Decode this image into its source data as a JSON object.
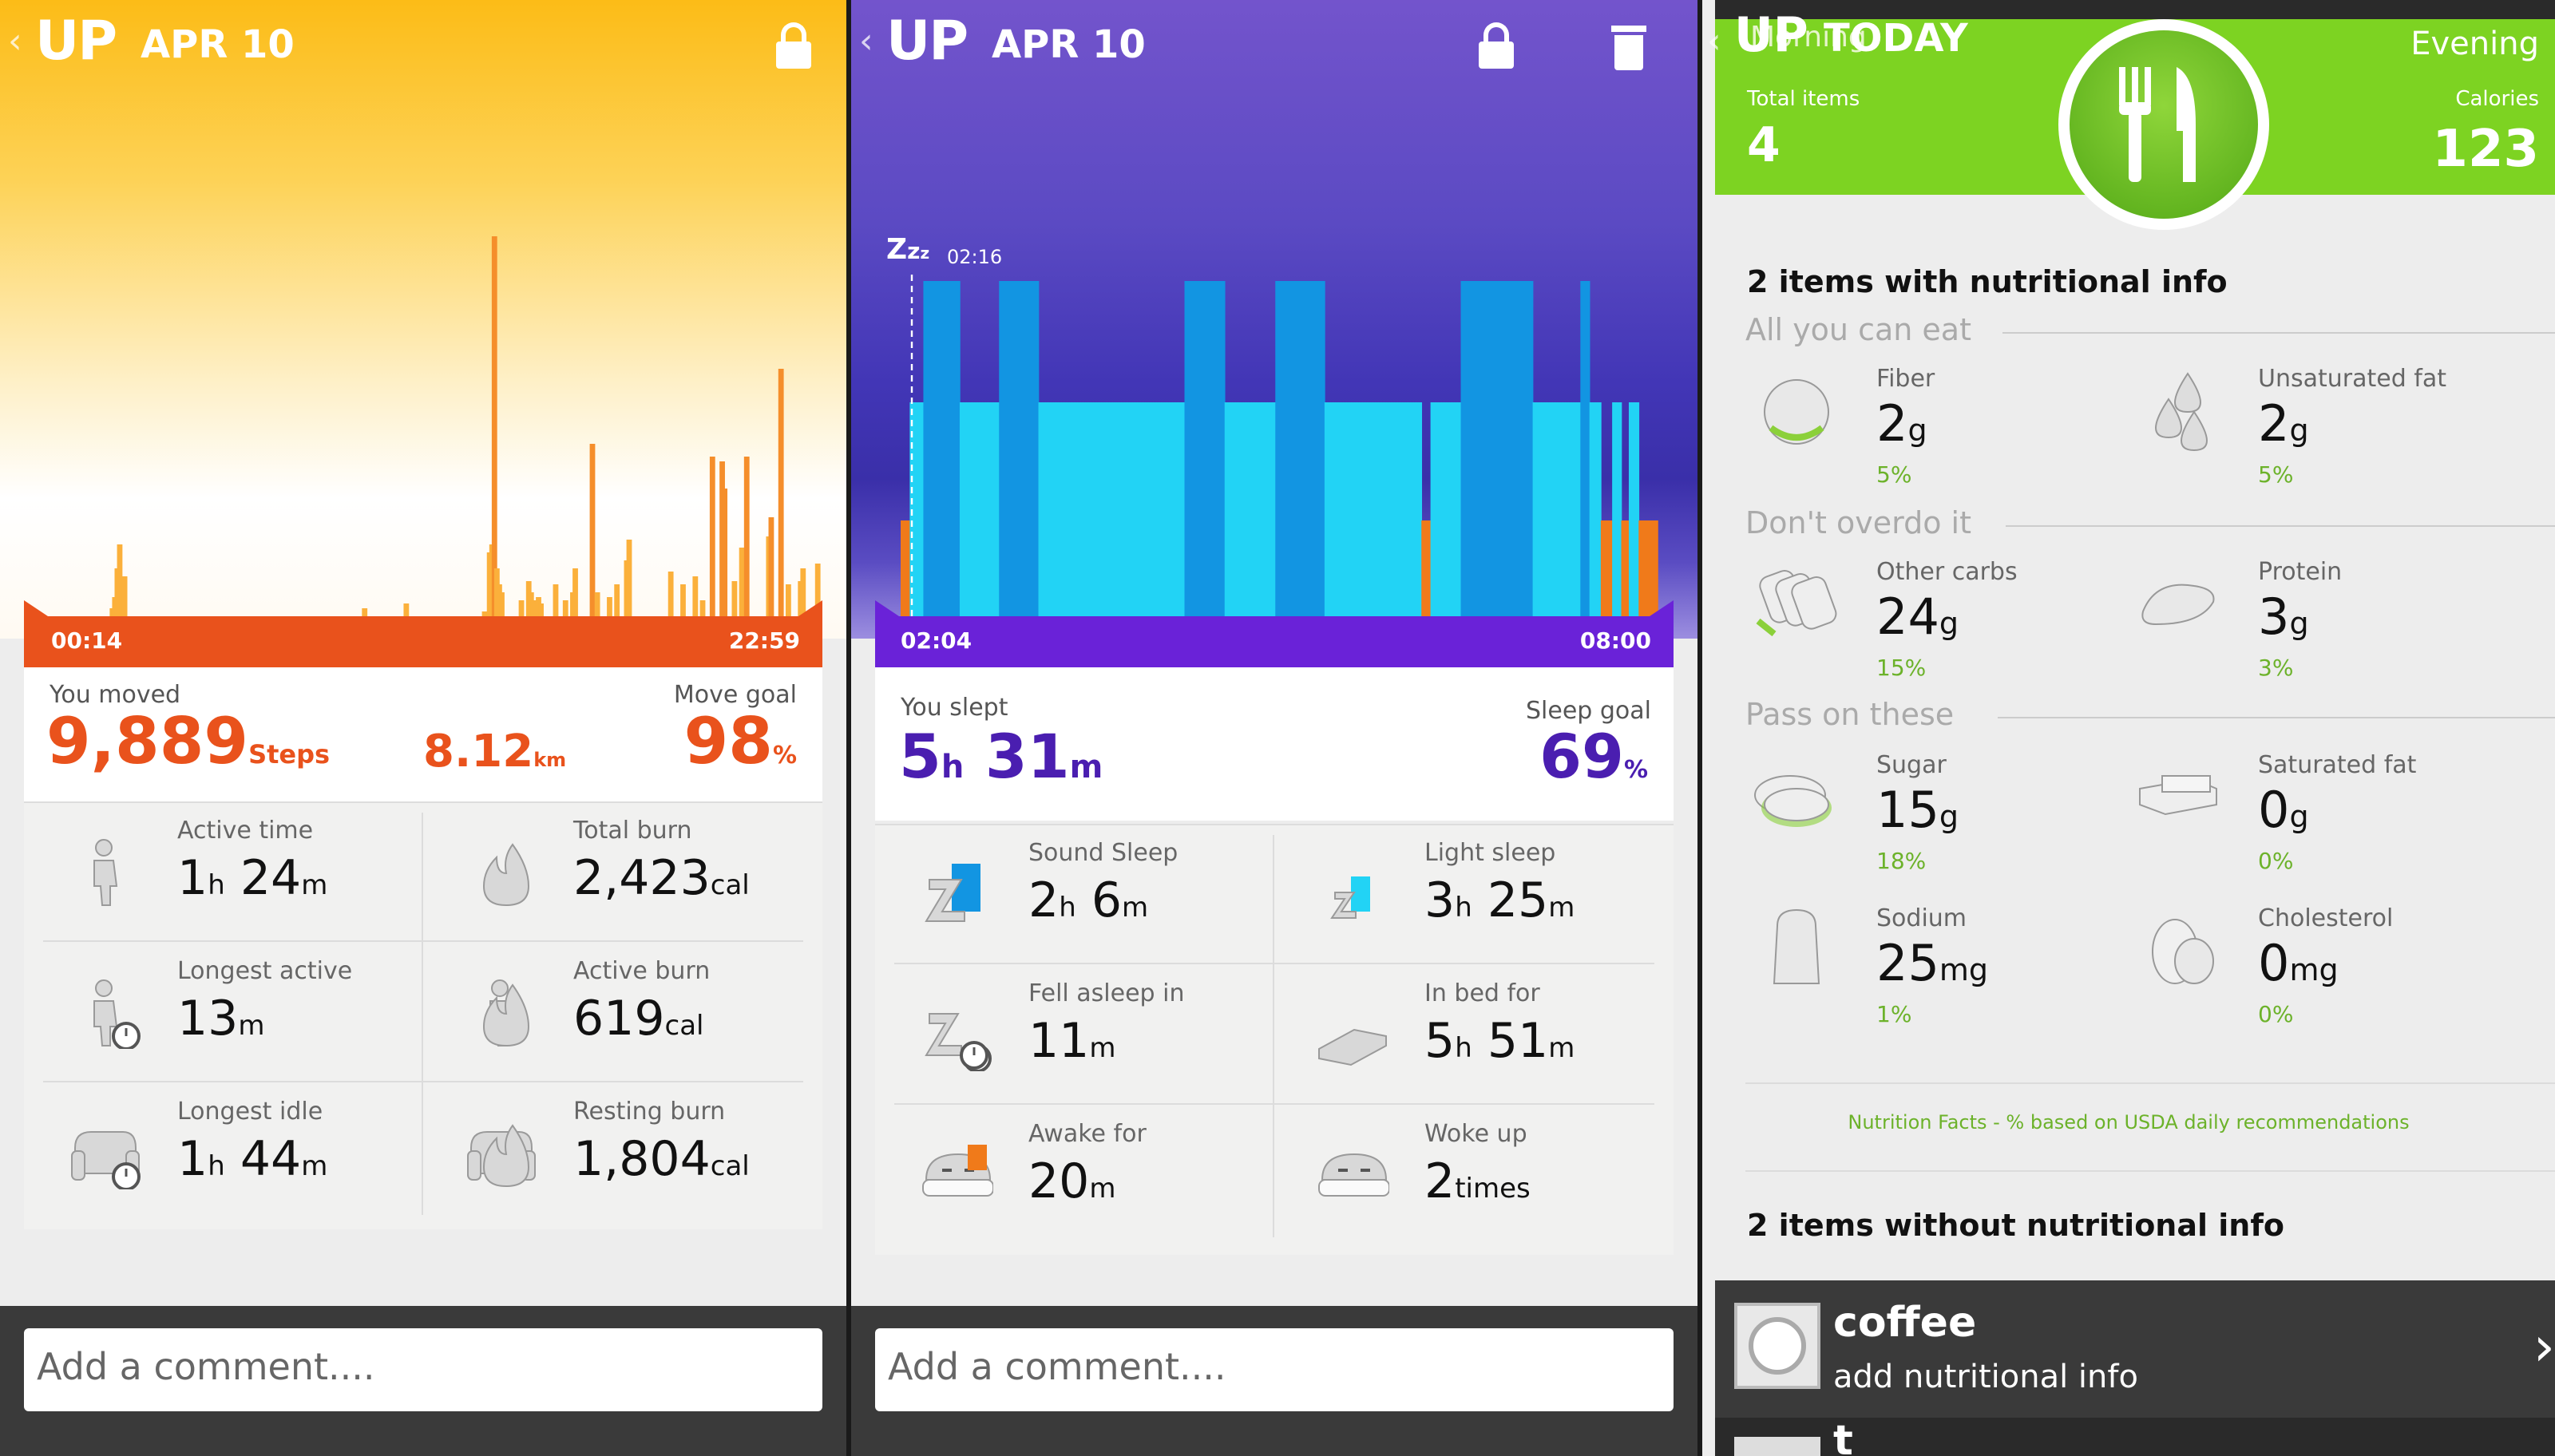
{
  "activity": {
    "back": "‹",
    "app": "UP",
    "date": "APR 10",
    "lock_icon": "lock-icon",
    "chart_data": {
      "type": "bar",
      "title": "",
      "xlabel": "",
      "ylabel": "",
      "x_start": "00:14",
      "x_end": "22:59",
      "values": [
        0,
        0,
        0,
        0,
        0,
        0,
        0,
        0,
        0,
        0,
        0,
        0,
        0,
        0,
        0,
        0,
        0,
        0,
        0,
        0,
        0,
        0,
        0,
        0,
        0,
        0,
        0,
        0,
        0,
        0,
        0,
        0,
        0,
        0,
        0,
        5,
        12,
        30,
        45,
        20,
        25,
        0,
        0,
        0,
        0,
        0,
        0,
        0,
        0,
        0,
        0,
        0,
        0,
        0,
        0,
        0,
        0,
        0,
        0,
        0,
        0,
        0,
        0,
        0,
        0,
        0,
        0,
        0,
        0,
        0,
        0,
        0,
        0,
        0,
        0,
        0,
        0,
        0,
        0,
        0,
        0,
        0,
        0,
        0,
        0,
        0,
        0,
        0,
        0,
        0,
        0,
        0,
        0,
        0,
        0,
        0,
        0,
        0,
        0,
        0,
        0,
        0,
        0,
        0,
        0,
        0,
        0,
        0,
        0,
        0,
        0,
        0,
        0,
        0,
        0,
        0,
        0,
        0,
        0,
        0,
        0,
        0,
        0,
        0,
        0,
        0,
        0,
        0,
        0,
        0,
        0,
        0,
        0,
        0,
        0,
        0,
        0,
        0,
        5,
        0,
        0,
        0,
        0,
        0,
        0,
        0,
        0,
        0,
        0,
        0,
        0,
        0,
        0,
        0,
        0,
        8,
        0,
        0,
        0,
        0,
        0,
        0,
        0,
        0,
        0,
        0,
        0,
        0,
        0,
        0,
        0,
        0,
        0,
        0,
        0,
        0,
        0,
        0,
        0,
        0,
        0,
        0,
        0,
        0,
        0,
        0,
        0,
        3,
        0,
        40,
        45,
        238,
        30,
        20,
        15,
        0,
        0,
        0,
        0,
        0,
        0,
        0,
        10,
        0,
        0,
        22,
        15,
        10,
        0,
        12,
        8,
        0,
        0,
        0,
        0,
        0,
        20,
        0,
        0,
        0,
        10,
        0,
        0,
        15,
        30,
        0,
        0,
        0,
        0,
        0,
        0,
        108,
        0,
        15,
        0,
        0,
        0,
        0,
        12,
        0,
        0,
        20,
        0,
        0,
        0,
        35,
        48,
        0,
        0,
        0,
        0,
        0,
        0,
        0,
        0,
        0,
        0,
        0,
        0,
        0,
        0,
        0,
        0,
        28,
        0,
        0,
        0,
        0,
        20,
        0,
        0,
        0,
        0,
        25,
        0,
        0,
        10,
        0,
        0,
        0,
        100,
        0,
        0,
        0,
        97,
        80,
        0,
        0,
        0,
        22,
        0,
        0,
        43,
        0,
        100,
        0,
        0,
        0,
        0,
        0,
        0,
        0,
        0,
        50,
        62,
        0,
        0,
        0,
        155,
        0,
        0,
        20,
        0,
        0,
        0,
        0,
        22,
        30,
        0,
        0,
        0,
        0,
        0,
        33,
        0,
        0
      ],
      "peak_index": 203
    },
    "moved_label": "You moved",
    "goal_label": "Move goal",
    "steps": "9,889",
    "steps_unit": "Steps",
    "distance": "8.12",
    "distance_unit": "km",
    "goal_pct": "98",
    "pct_unit": "%",
    "cells": [
      {
        "label": "Active time",
        "v1": "1",
        "u1": "h",
        "v2": " 24",
        "u2": "m",
        "icon": "walking-figure-icon"
      },
      {
        "label": "Total burn",
        "v1": "2,423",
        "u1": "cal",
        "v2": "",
        "u2": "",
        "icon": "flame-icon"
      },
      {
        "label": "Longest active",
        "v1": "13",
        "u1": "m",
        "v2": "",
        "u2": "",
        "icon": "figure-stopwatch-icon"
      },
      {
        "label": "Active burn",
        "v1": "619",
        "u1": "cal",
        "v2": "",
        "u2": "",
        "icon": "figure-flame-icon"
      },
      {
        "label": "Longest idle",
        "v1": "1",
        "u1": "h",
        "v2": " 44",
        "u2": "m",
        "icon": "armchair-stopwatch-icon"
      },
      {
        "label": "Resting burn",
        "v1": "1,804",
        "u1": "cal",
        "v2": "",
        "u2": "",
        "icon": "armchair-flame-icon"
      }
    ],
    "comment_placeholder": "Add a comment...."
  },
  "sleep": {
    "back": "‹",
    "app": "UP",
    "date": "APR 10",
    "lock_icon": "lock-icon",
    "trash_icon": "trash-icon",
    "zzz": "Z",
    "zz_sub": "z",
    "zzz_sub": "z",
    "fell_asleep_time": "02:16",
    "x_start": "02:04",
    "x_end": "08:00",
    "slept_label": "You slept",
    "goal_label": "Sleep goal",
    "slept_h": "5",
    "slept_h_unit": "h",
    "slept_m": " 31",
    "slept_m_unit": "m",
    "goal_pct": "69",
    "pct_unit": "%",
    "colors": {
      "deep": "#1295e2",
      "light": "#22d3f5",
      "awake": "#f07a1a"
    },
    "chart_data": {
      "type": "bar",
      "title": "",
      "xlabel": "",
      "ylabel": "",
      "x_start": "02:04",
      "x_end": "08:00",
      "levels": [
        "awake",
        "light",
        "deep"
      ],
      "segments": [
        {
          "from": 0.0,
          "to": 0.012,
          "level": "awake"
        },
        {
          "from": 0.012,
          "to": 0.03,
          "level": "light"
        },
        {
          "from": 0.03,
          "to": 0.078,
          "level": "deep"
        },
        {
          "from": 0.078,
          "to": 0.13,
          "level": "light"
        },
        {
          "from": 0.13,
          "to": 0.182,
          "level": "deep"
        },
        {
          "from": 0.182,
          "to": 0.375,
          "level": "light"
        },
        {
          "from": 0.375,
          "to": 0.428,
          "level": "deep"
        },
        {
          "from": 0.428,
          "to": 0.495,
          "level": "light"
        },
        {
          "from": 0.495,
          "to": 0.56,
          "level": "deep"
        },
        {
          "from": 0.56,
          "to": 0.688,
          "level": "light"
        },
        {
          "from": 0.688,
          "to": 0.7,
          "level": "awake"
        },
        {
          "from": 0.7,
          "to": 0.74,
          "level": "light"
        },
        {
          "from": 0.74,
          "to": 0.835,
          "level": "deep"
        },
        {
          "from": 0.835,
          "to": 0.898,
          "level": "light"
        },
        {
          "from": 0.898,
          "to": 0.91,
          "level": "deep"
        },
        {
          "from": 0.91,
          "to": 0.925,
          "level": "light"
        },
        {
          "from": 0.925,
          "to": 0.94,
          "level": "awake"
        },
        {
          "from": 0.94,
          "to": 0.952,
          "level": "light"
        },
        {
          "from": 0.952,
          "to": 0.962,
          "level": "awake"
        },
        {
          "from": 0.962,
          "to": 0.975,
          "level": "light"
        },
        {
          "from": 0.975,
          "to": 1.0,
          "level": "awake"
        }
      ]
    },
    "cells": [
      {
        "label": "Sound Sleep",
        "v1": "2",
        "u1": "h",
        "v2": " 6",
        "u2": "m",
        "icon": "sound-sleep-icon"
      },
      {
        "label": "Light sleep",
        "v1": "3",
        "u1": "h",
        "v2": " 25",
        "u2": "m",
        "icon": "light-sleep-icon"
      },
      {
        "label": "Fell asleep in",
        "v1": "11",
        "u1": "m",
        "v2": "",
        "u2": "",
        "icon": "zz-stopwatch-icon"
      },
      {
        "label": "In bed for",
        "v1": "5",
        "u1": "h",
        "v2": " 51",
        "u2": "m",
        "icon": "bed-icon"
      },
      {
        "label": "Awake for",
        "v1": "20",
        "u1": "m",
        "v2": "",
        "u2": "",
        "icon": "awake-face-icon"
      },
      {
        "label": "Woke up",
        "v1": "2",
        "u1": "times",
        "v2": "",
        "u2": "",
        "icon": "woke-face-icon"
      }
    ],
    "comment_placeholder": "Add a comment...."
  },
  "food": {
    "back": "‹",
    "app": "UP",
    "title": "TODAY",
    "morning": "Morning",
    "evening": "Evening",
    "total_label": "Total items",
    "total": "4",
    "cal_label": "Calories",
    "calories": "123",
    "meal_icon": "fork-knife-icon",
    "with_info": "2 items with nutritional info",
    "sections": [
      "All you can eat",
      "Don't overdo it",
      "Pass on these"
    ],
    "nutrients": [
      {
        "label": "Fiber",
        "v": "2",
        "u": "g",
        "pct": "5%",
        "icon": "apple-icon"
      },
      {
        "label": "Unsaturated fat",
        "v": "2",
        "u": "g",
        "pct": "5%",
        "icon": "oil-drops-icon"
      },
      {
        "label": "Other carbs",
        "v": "24",
        "u": "g",
        "pct": "15%",
        "icon": "bread-slices-icon"
      },
      {
        "label": "Protein",
        "v": "3",
        "u": "g",
        "pct": "3%",
        "icon": "steak-icon"
      },
      {
        "label": "Sugar",
        "v": "15",
        "u": "g",
        "pct": "18%",
        "icon": "sugar-icon"
      },
      {
        "label": "Saturated fat",
        "v": "0",
        "u": "g",
        "pct": "0%",
        "icon": "butter-icon"
      },
      {
        "label": "Sodium",
        "v": "25",
        "u": "mg",
        "pct": "1%",
        "icon": "salt-shaker-icon"
      },
      {
        "label": "Cholesterol",
        "v": "0",
        "u": "mg",
        "pct": "0%",
        "icon": "eggs-icon"
      }
    ],
    "footnote": "Nutrition Facts - % based on USDA daily recommendations",
    "without_info": "2 items without nutritional info",
    "item_name": "coffee",
    "item_sub": "add nutritional info",
    "item_icon": "plate-icon",
    "chevron": "›",
    "next_item_initial": "t"
  }
}
